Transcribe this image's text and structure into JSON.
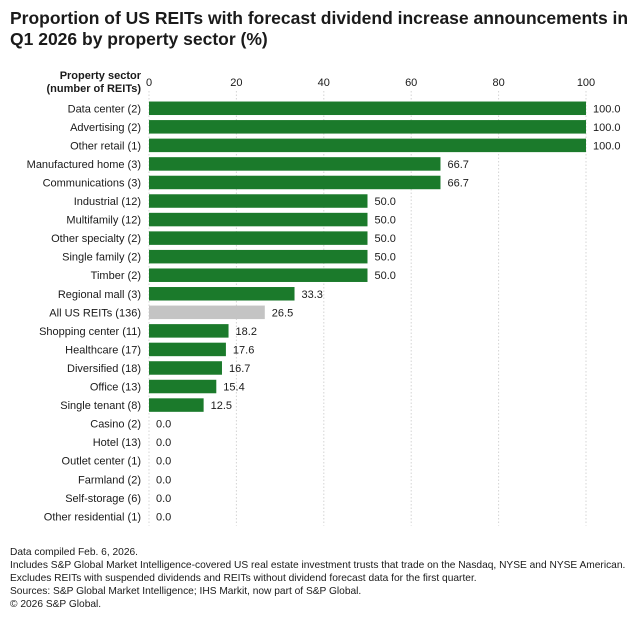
{
  "title": "Proportion of US REITs with forecast dividend increase announcements in Q1 2026 by property sector (%)",
  "chart_data": {
    "type": "bar",
    "orientation": "horizontal",
    "category_header": [
      "Property sector",
      "(number of REITs)"
    ],
    "x_ticks": [
      0,
      20,
      40,
      60,
      80,
      100
    ],
    "xlim": [
      0,
      100
    ],
    "grid": true,
    "categories": [
      "Data center (2)",
      "Advertising (2)",
      "Other retail (1)",
      "Manufactured home (3)",
      "Communications (3)",
      "Industrial (12)",
      "Multifamily (12)",
      "Other specialty (2)",
      "Single family (2)",
      "Timber (2)",
      "Regional mall (3)",
      "All US REITs (136)",
      "Shopping center (11)",
      "Healthcare (17)",
      "Diversified (18)",
      "Office (13)",
      "Single tenant (8)",
      "Casino (2)",
      "Hotel (13)",
      "Outlet center (1)",
      "Farmland (2)",
      "Self-storage (6)",
      "Other residential (1)"
    ],
    "values": [
      100.0,
      100.0,
      100.0,
      66.7,
      66.7,
      50.0,
      50.0,
      50.0,
      50.0,
      50.0,
      33.3,
      26.5,
      18.2,
      17.6,
      16.7,
      15.4,
      12.5,
      0.0,
      0.0,
      0.0,
      0.0,
      0.0,
      0.0
    ],
    "value_labels": [
      "100.0",
      "100.0",
      "100.0",
      "66.7",
      "66.7",
      "50.0",
      "50.0",
      "50.0",
      "50.0",
      "50.0",
      "33.3",
      "26.5",
      "18.2",
      "17.6",
      "16.7",
      "15.4",
      "12.5",
      "0.0",
      "0.0",
      "0.0",
      "0.0",
      "0.0",
      "0.0"
    ],
    "highlight_category": "All US REITs (136)",
    "colors": {
      "bar": "#1b7a2b",
      "highlight": "#c4c4c4",
      "grid": "#d4d4d4"
    }
  },
  "notes": [
    "Data compiled Feb. 6, 2026.",
    "Includes S&P Global Market Intelligence-covered US real estate investment trusts that trade on the Nasdaq, NYSE and NYSE American.",
    "Excludes REITs with suspended dividends and REITs without dividend forecast data for the first quarter.",
    "Sources: S&P Global Market Intelligence; IHS Markit, now part of S&P Global.",
    "© 2026 S&P Global."
  ]
}
